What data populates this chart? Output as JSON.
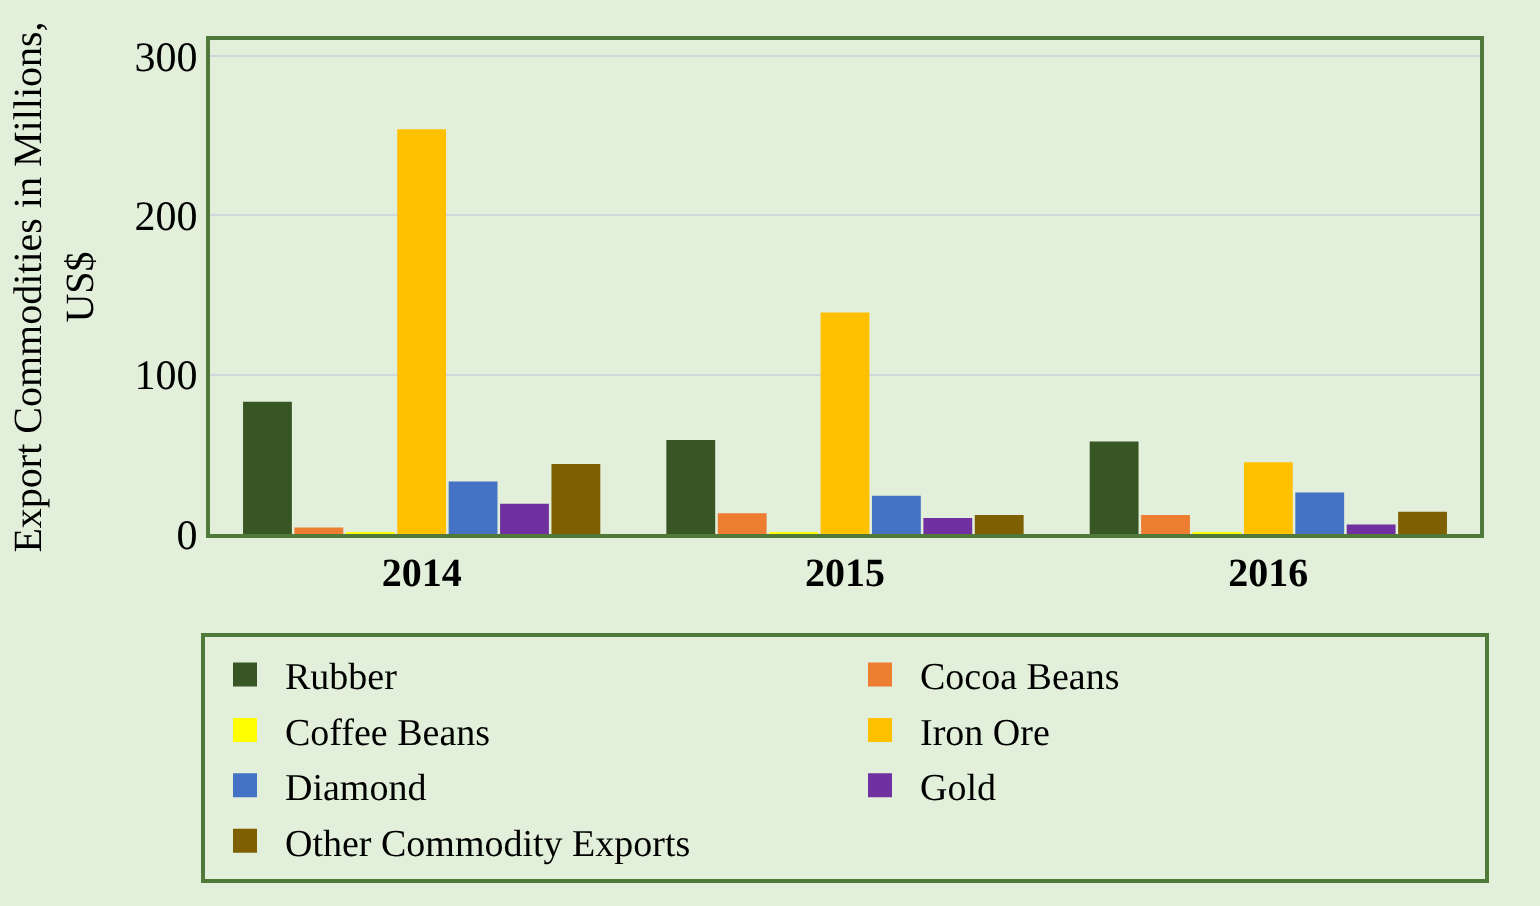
{
  "chart_data": {
    "type": "bar",
    "ylabel": "Export Commodities in Millions,\nUS$",
    "categories": [
      "2014",
      "2015",
      "2016"
    ],
    "series": [
      {
        "name": "Rubber",
        "color": "#375623",
        "values": [
          83,
          59,
          58
        ]
      },
      {
        "name": "Cocoa Beans",
        "color": "#ed7d31",
        "values": [
          4,
          13,
          12
        ]
      },
      {
        "name": "Coffee Beans",
        "color": "#ffff00",
        "values": [
          1,
          1,
          1
        ]
      },
      {
        "name": "Iron Ore",
        "color": "#ffc000",
        "values": [
          254,
          139,
          45
        ]
      },
      {
        "name": "Diamond",
        "color": "#4472c4",
        "values": [
          33,
          24,
          26
        ]
      },
      {
        "name": "Gold",
        "color": "#7030a0",
        "values": [
          19,
          10,
          6
        ]
      },
      {
        "name": "Other Commodity Exports",
        "color": "#7f6000",
        "values": [
          44,
          12,
          14
        ]
      }
    ],
    "ylim": [
      0,
      310
    ],
    "yticks": [
      0,
      100,
      200,
      300
    ],
    "grid": "y",
    "legend": "bottom"
  }
}
